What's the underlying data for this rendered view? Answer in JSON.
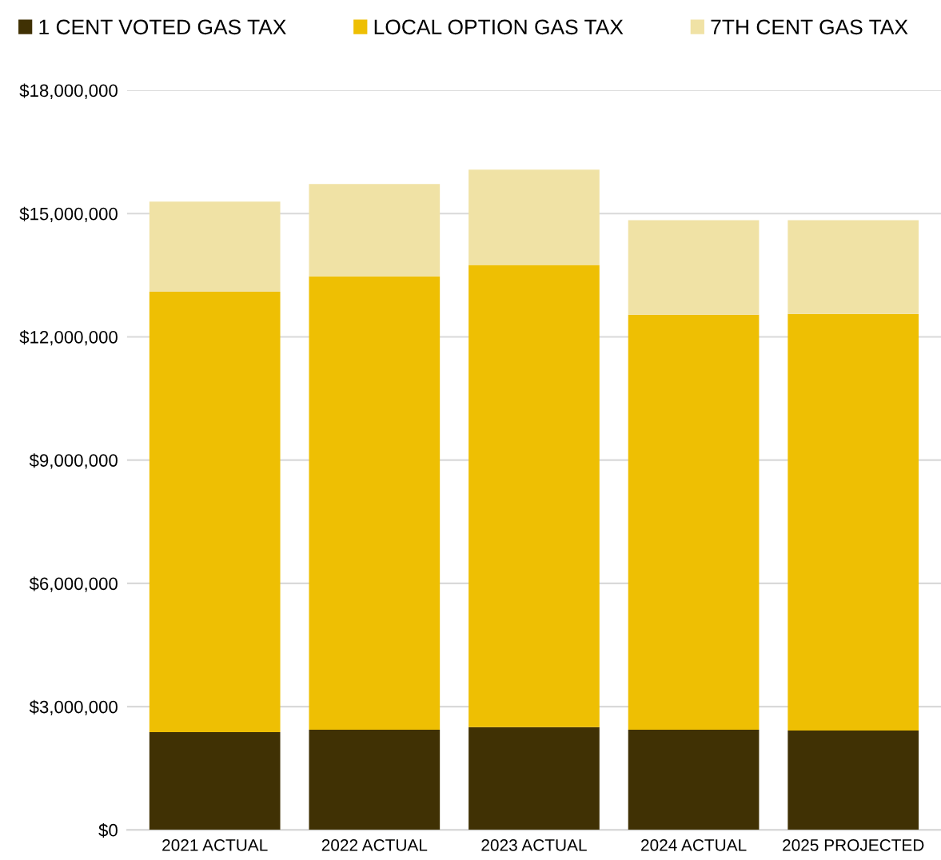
{
  "chart_data": {
    "type": "bar",
    "stacked": true,
    "categories": [
      "2021 ACTUAL",
      "2022 ACTUAL",
      "2023 ACTUAL",
      "2024 ACTUAL",
      "2025 PROJECTED"
    ],
    "series": [
      {
        "name": "1 CENT VOTED GAS TAX",
        "color": "#403104",
        "values": [
          2380000,
          2440000,
          2500000,
          2440000,
          2420000
        ]
      },
      {
        "name": "LOCAL OPTION GAS TAX",
        "color": "#eebf03",
        "values": [
          10720000,
          11030000,
          11250000,
          10100000,
          10140000
        ]
      },
      {
        "name": "7TH CENT GAS TAX",
        "color": "#f0e2a5",
        "values": [
          2190000,
          2250000,
          2320000,
          2300000,
          2280000
        ]
      }
    ],
    "ylim": [
      0,
      18000000
    ],
    "yticks": [
      {
        "value": 0,
        "label": "$0"
      },
      {
        "value": 3000000,
        "label": "$3,000,000"
      },
      {
        "value": 6000000,
        "label": "$6,000,000"
      },
      {
        "value": 9000000,
        "label": "$9,000,000"
      },
      {
        "value": 12000000,
        "label": "$12,000,000"
      },
      {
        "value": 15000000,
        "label": "$15,000,000"
      },
      {
        "value": 18000000,
        "label": "$18,000,000"
      }
    ],
    "grid": "y",
    "legend": "top left"
  }
}
